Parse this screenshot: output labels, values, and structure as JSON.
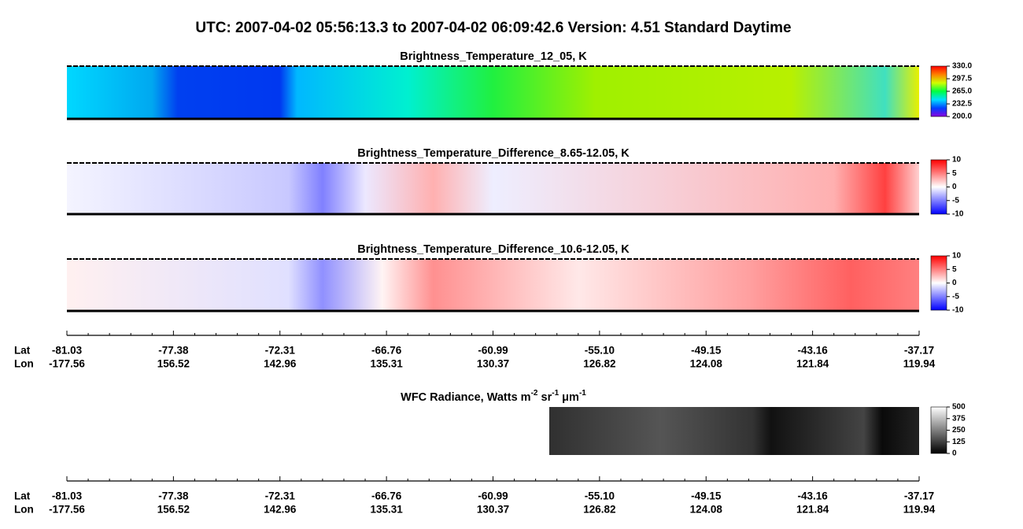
{
  "title": "UTC:  2007-04-02   05:56:13.3  to  2007-04-02   06:09:42.6    Version: 4.51  Standard Daytime",
  "chart_data": [
    {
      "type": "heatmap",
      "title": "Brightness_Temperature_12_05, K",
      "ylim": [
        200,
        330
      ],
      "yticks": [
        {
          "value": 200,
          "label": "200.0"
        },
        {
          "value": 232.5,
          "label": "232.5"
        },
        {
          "value": 265,
          "label": "265.0"
        },
        {
          "value": 297.5,
          "label": "297.5"
        },
        {
          "value": 330,
          "label": "330.0"
        }
      ],
      "colors": [
        "#8a00e0",
        "#0040ff",
        "#00e0ff",
        "#00ff40",
        "#d0ff00",
        "#ff8000",
        "#ff0000"
      ]
    },
    {
      "type": "heatmap",
      "title": "Brightness_Temperature_Difference_8.65-12.05, K",
      "ylim": [
        -10,
        10
      ],
      "yticks": [
        -10,
        -5,
        0,
        5,
        10
      ],
      "colors": [
        "#0000ff",
        "#ffffff",
        "#ff0000"
      ]
    },
    {
      "type": "heatmap",
      "title": "Brightness_Temperature_Difference_10.6-12.05, K",
      "ylim": [
        -10,
        10
      ],
      "yticks": [
        -10,
        -5,
        0,
        5,
        10
      ],
      "colors": [
        "#0000ff",
        "#ffffff",
        "#ff0000"
      ]
    },
    {
      "type": "heatmap",
      "title_parts": [
        "WFC Radiance, Watts m",
        "-2",
        " sr",
        "-1",
        " μm",
        "-1"
      ],
      "ylim": [
        0,
        500
      ],
      "yticks": [
        0,
        125,
        250,
        375,
        500
      ],
      "colors": [
        "#000000",
        "#ffffff"
      ]
    }
  ],
  "axes": [
    {
      "lat_title": "Lat",
      "lon_title": "Lon",
      "lat": [
        "-81.03",
        "-77.38",
        "-72.31",
        "-66.76",
        "-60.99",
        "-55.10",
        "-49.15",
        "-43.16",
        "-37.17"
      ],
      "lon": [
        "-177.56",
        "156.52",
        "142.96",
        "135.31",
        "130.37",
        "126.82",
        "124.08",
        "121.84",
        "119.94"
      ]
    },
    {
      "lat_title": "Lat",
      "lon_title": "Lon",
      "lat": [
        "-81.03",
        "-77.38",
        "-72.31",
        "-66.76",
        "-60.99",
        "-55.10",
        "-49.15",
        "-43.16",
        "-37.17"
      ],
      "lon": [
        "-177.56",
        "156.52",
        "142.96",
        "135.31",
        "130.37",
        "126.82",
        "124.08",
        "121.84",
        "119.94"
      ]
    }
  ]
}
